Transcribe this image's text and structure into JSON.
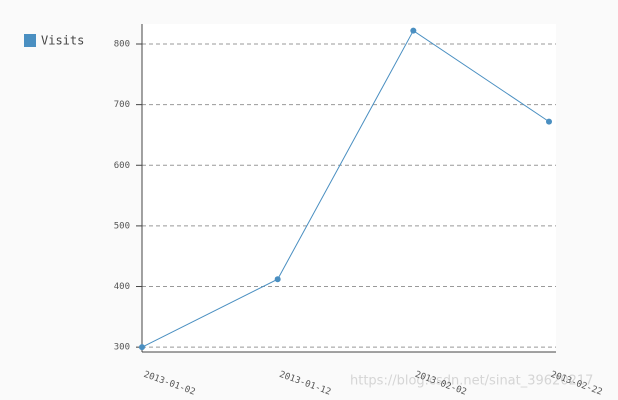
{
  "chart_data": {
    "type": "line",
    "categories": [
      "2013-01-02",
      "2013-01-12",
      "2013-02-02",
      "2013-02-22"
    ],
    "series": [
      {
        "name": "Visits",
        "color": "#4a8fc1",
        "values": [
          300,
          412,
          822,
          672
        ]
      }
    ],
    "ylim": [
      292,
      833
    ],
    "yticks": [
      300,
      400,
      500,
      600,
      700,
      800
    ],
    "grid": true,
    "legend": "top-left",
    "watermark": "https://blog.csdn.net/sinat_39620217"
  }
}
